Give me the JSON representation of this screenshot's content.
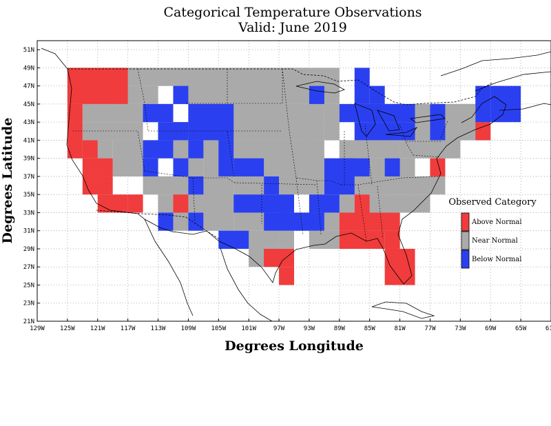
{
  "title": "Categorical Temperature Observations",
  "subtitle": "Valid: June 2019",
  "xlabel": "Degrees Longitude",
  "ylabel": "Degrees Latitude",
  "legend": {
    "title": "Observed Category",
    "items": [
      {
        "label": "Above Normal",
        "color": "#f03c3c"
      },
      {
        "label": "Near Normal",
        "color": "#aaaaaa"
      },
      {
        "label": "Below Normal",
        "color": "#2a40f0"
      }
    ]
  },
  "chart_data": {
    "type": "heatmap",
    "xlim": [
      -129,
      -61
    ],
    "ylim": [
      21,
      52
    ],
    "x_ticks": [
      {
        "v": -129,
        "label": "129W"
      },
      {
        "v": -125,
        "label": "125W"
      },
      {
        "v": -121,
        "label": "121W"
      },
      {
        "v": -117,
        "label": "117W"
      },
      {
        "v": -113,
        "label": "113W"
      },
      {
        "v": -109,
        "label": "109W"
      },
      {
        "v": -105,
        "label": "105W"
      },
      {
        "v": -101,
        "label": "101W"
      },
      {
        "v": -97,
        "label": "97W"
      },
      {
        "v": -93,
        "label": "93W"
      },
      {
        "v": -89,
        "label": "89W"
      },
      {
        "v": -85,
        "label": "85W"
      },
      {
        "v": -81,
        "label": "81W"
      },
      {
        "v": -77,
        "label": "77W"
      },
      {
        "v": -73,
        "label": "73W"
      },
      {
        "v": -69,
        "label": "69W"
      },
      {
        "v": -65,
        "label": "65W"
      },
      {
        "v": -61,
        "label": "61W"
      }
    ],
    "y_ticks": [
      {
        "v": 21,
        "label": "21N"
      },
      {
        "v": 23,
        "label": "23N"
      },
      {
        "v": 25,
        "label": "25N"
      },
      {
        "v": 27,
        "label": "27N"
      },
      {
        "v": 29,
        "label": "29N"
      },
      {
        "v": 31,
        "label": "31N"
      },
      {
        "v": 33,
        "label": "33N"
      },
      {
        "v": 35,
        "label": "35N"
      },
      {
        "v": 37,
        "label": "37N"
      },
      {
        "v": 39,
        "label": "39N"
      },
      {
        "v": 41,
        "label": "41N"
      },
      {
        "v": 43,
        "label": "43N"
      },
      {
        "v": 45,
        "label": "45N"
      },
      {
        "v": 47,
        "label": "47N"
      },
      {
        "v": 49,
        "label": "49N"
      },
      {
        "v": 51,
        "label": "51N"
      }
    ],
    "grid": true,
    "legend_position": "right",
    "categories": [
      "Above Normal",
      "Near Normal",
      "Below Normal"
    ],
    "cell_size_degrees": 2,
    "cells": {
      "near": [
        [
          -125,
          49,
          -117,
          47
        ],
        [
          -117,
          49,
          -111,
          47
        ],
        [
          -111,
          49,
          -95,
          45
        ],
        [
          -95,
          49,
          -89,
          47
        ],
        [
          -95,
          47,
          -89,
          45
        ],
        [
          -119,
          47,
          -117,
          45
        ],
        [
          -117,
          47,
          -113,
          45
        ],
        [
          -123,
          45,
          -113,
          43
        ],
        [
          -123,
          43,
          -115,
          41
        ],
        [
          -123,
          41,
          -119,
          39
        ],
        [
          -119,
          41,
          -115,
          37
        ],
        [
          -115,
          45,
          -111,
          43
        ],
        [
          -107,
          45,
          -95,
          41
        ],
        [
          -111,
          43,
          -105,
          41
        ],
        [
          -111,
          41,
          -107,
          37
        ],
        [
          -107,
          41,
          -103,
          37
        ],
        [
          -103,
          41,
          -95,
          37
        ],
        [
          -95,
          45,
          -91,
          41
        ],
        [
          -95,
          41,
          -91,
          37
        ],
        [
          -91,
          45,
          -89,
          41
        ],
        [
          -89,
          41,
          -81,
          39
        ],
        [
          -81,
          41,
          -77,
          39
        ],
        [
          -81,
          43,
          -77,
          41
        ],
        [
          -77,
          43,
          -73,
          39
        ],
        [
          -79,
          45,
          -71,
          43
        ],
        [
          -73,
          43,
          -69,
          41
        ],
        [
          -75,
          45,
          -71,
          41
        ],
        [
          -71,
          47,
          -69,
          43
        ],
        [
          -89,
          39,
          -79,
          37
        ],
        [
          -89,
          37,
          -77,
          35
        ],
        [
          -77,
          37,
          -75,
          35
        ],
        [
          -115,
          37,
          -111,
          35
        ],
        [
          -111,
          37,
          -103,
          33
        ],
        [
          -103,
          37,
          -99,
          33
        ],
        [
          -97,
          37,
          -95,
          33
        ],
        [
          -95,
          37,
          -91,
          35
        ],
        [
          -89,
          35,
          -87,
          33
        ],
        [
          -85,
          35,
          -77,
          33
        ],
        [
          -85,
          33,
          -81,
          31
        ],
        [
          -113,
          35,
          -111,
          33
        ],
        [
          -107,
          33,
          -103,
          31
        ],
        [
          -103,
          33,
          -99,
          31
        ],
        [
          -101,
          31,
          -97,
          27
        ],
        [
          -97,
          31,
          -95,
          29
        ],
        [
          -91,
          33,
          -89,
          31
        ],
        [
          -93,
          31,
          -89,
          29
        ],
        [
          -111,
          33,
          -109,
          31
        ],
        [
          -89,
          31,
          -87,
          29
        ],
        [
          -87,
          33,
          -85,
          31
        ]
      ],
      "above": [
        [
          -125,
          49,
          -117,
          45
        ],
        [
          -125,
          45,
          -123,
          39
        ],
        [
          -123,
          41,
          -121,
          39
        ],
        [
          -123,
          39,
          -119,
          37
        ],
        [
          -123,
          37,
          -119,
          35
        ],
        [
          -121,
          35,
          -117,
          33
        ],
        [
          -117,
          35,
          -115,
          33
        ],
        [
          -111,
          35,
          -109,
          33
        ],
        [
          -99,
          29,
          -95,
          27
        ],
        [
          -97,
          27,
          -95,
          25
        ],
        [
          -89,
          31,
          -83,
          29
        ],
        [
          -87,
          35,
          -85,
          31
        ],
        [
          -89,
          33,
          -81,
          31
        ],
        [
          -83,
          31,
          -81,
          29
        ],
        [
          -83,
          29,
          -79,
          25
        ],
        [
          -77,
          39,
          -75,
          37
        ],
        [
          -71,
          43,
          -69,
          41
        ]
      ],
      "below": [
        [
          -111,
          47,
          -109,
          45
        ],
        [
          -115,
          45,
          -111,
          43
        ],
        [
          -109,
          45,
          -103,
          41
        ],
        [
          -113,
          43,
          -109,
          41
        ],
        [
          -115,
          41,
          -111,
          39
        ],
        [
          -115,
          39,
          -113,
          37
        ],
        [
          -111,
          39,
          -109,
          37
        ],
        [
          -109,
          41,
          -107,
          39
        ],
        [
          -105,
          41,
          -103,
          37
        ],
        [
          -103,
          39,
          -99,
          37
        ],
        [
          -109,
          37,
          -107,
          35
        ],
        [
          -99,
          37,
          -97,
          35
        ],
        [
          -103,
          35,
          -95,
          33
        ],
        [
          -99,
          33,
          -91,
          31
        ],
        [
          -93,
          35,
          -89,
          33
        ],
        [
          -91,
          39,
          -87,
          35
        ],
        [
          -89,
          39,
          -85,
          37
        ],
        [
          -83,
          39,
          -81,
          37
        ],
        [
          -89,
          45,
          -81,
          43
        ],
        [
          -87,
          43,
          -79,
          41
        ],
        [
          -85,
          45,
          -79,
          43
        ],
        [
          -87,
          49,
          -85,
          45
        ],
        [
          -85,
          47,
          -83,
          45
        ],
        [
          -93,
          47,
          -91,
          45
        ],
        [
          -77,
          45,
          -75,
          41
        ],
        [
          -69,
          47,
          -65,
          43
        ],
        [
          -71,
          47,
          -69,
          43
        ],
        [
          -113,
          33,
          -111,
          31
        ],
        [
          -109,
          33,
          -107,
          31
        ],
        [
          -105,
          31,
          -101,
          29
        ]
      ]
    }
  }
}
